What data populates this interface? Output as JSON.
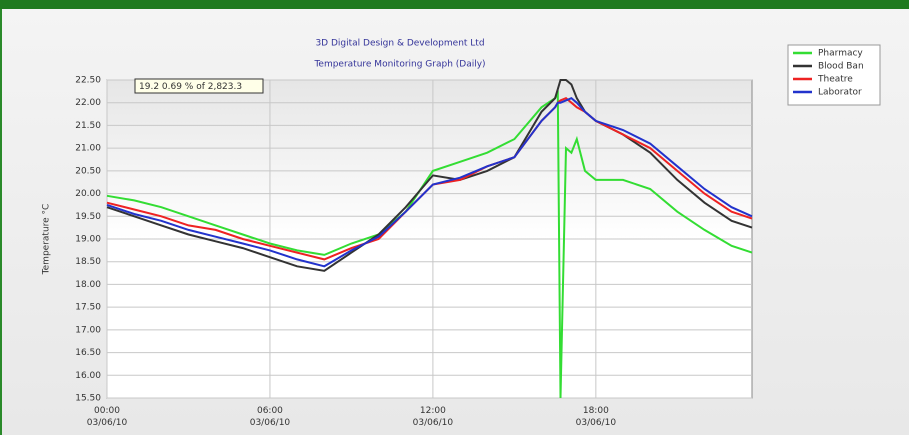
{
  "chart_data": {
    "type": "line",
    "title": "3D Digital Design & Development Ltd",
    "subtitle": "Temperature Monitoring Graph (Daily)",
    "y_label": "Temperature °C",
    "annotation": "19.2 0.69 % of 2,823.3",
    "x": [
      0,
      1,
      2,
      3,
      4,
      5,
      6,
      7,
      8,
      9,
      10,
      11,
      12,
      13,
      14,
      15,
      16,
      16.5,
      16.6,
      16.7,
      16.9,
      17.1,
      17.3,
      17.6,
      18,
      19,
      20,
      21,
      22,
      23,
      23.75
    ],
    "series": [
      {
        "name": "Pharmacy",
        "color": "#33dd33",
        "values": [
          19.95,
          19.85,
          19.7,
          19.5,
          19.3,
          19.1,
          18.9,
          18.75,
          18.65,
          18.9,
          19.1,
          19.6,
          20.5,
          20.7,
          20.9,
          21.2,
          21.9,
          22.1,
          22.2,
          15.5,
          21.0,
          20.9,
          21.2,
          20.5,
          20.3,
          20.3,
          20.1,
          19.6,
          19.2,
          18.85,
          18.7
        ]
      },
      {
        "name": "Blood Ban",
        "color": "#333333",
        "values": [
          19.7,
          19.5,
          19.3,
          19.1,
          18.95,
          18.8,
          18.6,
          18.4,
          18.3,
          18.7,
          19.1,
          19.7,
          20.4,
          20.3,
          20.5,
          20.8,
          21.8,
          22.1,
          22.3,
          22.5,
          22.5,
          22.4,
          22.1,
          21.8,
          21.6,
          21.3,
          20.9,
          20.3,
          19.8,
          19.4,
          19.25
        ]
      },
      {
        "name": "Theatre",
        "color": "#ee2222",
        "values": [
          19.8,
          19.65,
          19.5,
          19.3,
          19.2,
          19.0,
          18.85,
          18.7,
          18.55,
          18.8,
          19.0,
          19.6,
          20.2,
          20.3,
          20.6,
          20.8,
          21.6,
          21.9,
          22.0,
          22.05,
          22.1,
          22.0,
          21.9,
          21.8,
          21.6,
          21.3,
          21.0,
          20.5,
          20.0,
          19.6,
          19.45
        ]
      },
      {
        "name": "Laborator",
        "color": "#2233cc",
        "values": [
          19.75,
          19.55,
          19.4,
          19.2,
          19.05,
          18.9,
          18.75,
          18.55,
          18.4,
          18.75,
          19.05,
          19.6,
          20.2,
          20.35,
          20.6,
          20.8,
          21.6,
          21.9,
          22.0,
          22.0,
          22.05,
          22.1,
          22.0,
          21.8,
          21.6,
          21.4,
          21.1,
          20.6,
          20.1,
          19.7,
          19.5
        ]
      }
    ],
    "xlim": [
      0,
      23.75
    ],
    "xticks": [
      {
        "value": 0,
        "label": "00:00 03/06/10"
      },
      {
        "value": 6,
        "label": "06:00 03/06/10"
      },
      {
        "value": 12,
        "label": "12:00 03/06/10"
      },
      {
        "value": 18,
        "label": "18:00 03/06/10"
      }
    ],
    "ylim": [
      15.5,
      22.5
    ],
    "yticks": [
      {
        "value": 15.5,
        "label": "15.50"
      },
      {
        "value": 16,
        "label": "16.00"
      },
      {
        "value": 16.5,
        "label": "16.50"
      },
      {
        "value": 17,
        "label": "17.00"
      },
      {
        "value": 17.5,
        "label": "17.50"
      },
      {
        "value": 18,
        "label": "18.00"
      },
      {
        "value": 18.5,
        "label": "18.50"
      },
      {
        "value": 19,
        "label": "19.00"
      },
      {
        "value": 19.5,
        "label": "19.50"
      },
      {
        "value": 20,
        "label": "20.00"
      },
      {
        "value": 20.5,
        "label": "20.50"
      },
      {
        "value": 21,
        "label": "21.00"
      },
      {
        "value": 21.5,
        "label": "21.50"
      },
      {
        "value": 22,
        "label": "22.00"
      },
      {
        "value": 22.5,
        "label": "22.50"
      }
    ],
    "grid": true
  }
}
